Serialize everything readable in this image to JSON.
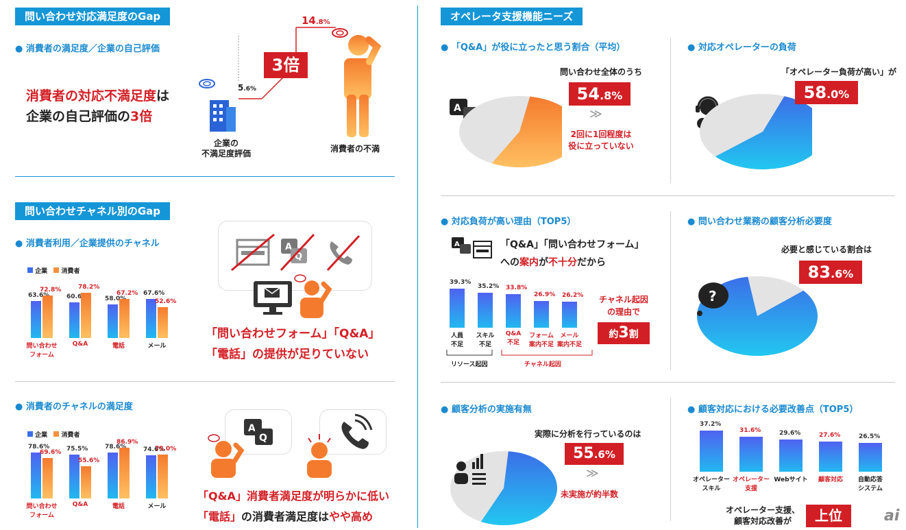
{
  "left": {
    "section1": {
      "header": "問い合わせ対応満足度のGap",
      "sub": "消費者の満足度／企業の自己評価",
      "lead1_a": "消費者の対応不満足度",
      "lead1_b": "は",
      "lead2_a": "企業の自己評価の",
      "lead2_b": "3倍",
      "value_high": "14",
      "value_high_unit": ".8%",
      "value_low": "5",
      "value_low_unit": ".6%",
      "multiple": "3倍",
      "company_label1": "企業の",
      "company_label2": "不満足度評価",
      "consumer_label": "消費者の不満"
    },
    "section2": {
      "header": "問い合わせチャネル別のGap",
      "sub": "消費者利用／企業提供のチャネル",
      "legend_company": "企業",
      "legend_consumer": "消費者",
      "message_line1": "「問い合わせフォーム」「Q&A」",
      "message_line2_a": "「電話」の提供が",
      "message_line2_b": "足りていない"
    },
    "section3": {
      "sub": "消費者のチャネルの満足度",
      "legend_company": "企業",
      "legend_consumer": "消費者",
      "message_line1_a": "「Q&A」消費者満足度が明らかに",
      "message_line1_b": "低い",
      "message_line2_a": "「電話」",
      "message_line2_b": "の消費者満足度は",
      "message_line2_c": "やや高め"
    }
  },
  "right": {
    "header": "オペレータ支援機能ニーズ",
    "qa": {
      "sub": "「Q&A」が役に立ったと思う割合（平均）",
      "intro": "問い合わせ全体のうち",
      "value": "54",
      "value_unit": ".8%",
      "note1": "2回に1回程度は",
      "note2": "役に立っていない"
    },
    "load": {
      "sub": "対応オペレーターの負荷",
      "intro": "「オペレーター負荷が高い」が",
      "value": "58",
      "value_unit": ".0%"
    },
    "reasons": {
      "sub": "対応負荷が高い理由（TOP5）",
      "msg1": "「Q&A」「問い合わせフォーム」",
      "msg2_a": "への",
      "msg2_b": "案内",
      "msg2_c": "が",
      "msg2_d": "不十分",
      "msg2_e": "だから",
      "group_resource": "リソース起因",
      "group_channel": "チャネル起因",
      "callout1": "チャネル起因",
      "callout2": "の理由で",
      "callout3_a": "約",
      "callout3_b": "3",
      "callout3_c": "割"
    },
    "analysis_need": {
      "sub": "問い合わせ業務の顧客分析必要度",
      "intro": "必要と感じている割合は",
      "value": "83",
      "value_unit": ".6%"
    },
    "analysis_done": {
      "sub": "顧客分析の実施有無",
      "intro": "実際に分析を行っているのは",
      "value": "55",
      "value_unit": ".6%",
      "note": "未実施が約半数"
    },
    "improve": {
      "sub": "顧客対応における必要改善点（TOP5）",
      "msg1": "オペレーター支援、",
      "msg2": "顧客対応改善が",
      "badge": "上位"
    }
  },
  "brand": "ai",
  "colors": {
    "blue": "#1596d6",
    "red": "#d21f25",
    "orange": "#f47b2e"
  },
  "chart_data": [
    {
      "type": "bar",
      "id": "channel-usage",
      "categories": [
        "問い合わせフォーム",
        "Q&A",
        "電話",
        "メール"
      ],
      "category_lines": [
        [
          "問い合わせ",
          "フォーム"
        ],
        [
          "Q&A"
        ],
        [
          "電話"
        ],
        [
          "メール"
        ]
      ],
      "series": [
        {
          "name": "企業",
          "values": [
            63.6,
            60.6,
            58.0,
            67.6
          ],
          "labels": [
            "63.6%",
            "60.6%",
            "58.0%",
            "67.6%"
          ]
        },
        {
          "name": "消費者",
          "values": [
            72.8,
            78.2,
            67.2,
            52.6
          ],
          "labels": [
            "72.8%",
            "78.2%",
            "67.2%",
            "52.6%"
          ]
        }
      ]
    },
    {
      "type": "bar",
      "id": "channel-satisfaction",
      "categories": [
        "問い合わせフォーム",
        "Q&A",
        "電話",
        "メール"
      ],
      "category_lines": [
        [
          "問い合わせ",
          "フォーム"
        ],
        [
          "Q&A"
        ],
        [
          "電話"
        ],
        [
          "メール"
        ]
      ],
      "series": [
        {
          "name": "企業",
          "values": [
            78.6,
            75.5,
            78.6,
            74.6
          ],
          "labels": [
            "78.6%",
            "75.5%",
            "78.6%",
            "74.6%"
          ]
        },
        {
          "name": "消費者",
          "values": [
            69.6,
            55.6,
            86.9,
            75.0
          ],
          "labels": [
            "69.6%",
            "55.6%",
            "86.9%",
            "75.0%"
          ]
        }
      ]
    },
    {
      "type": "bar",
      "id": "load-reasons",
      "categories": [
        "人員不足",
        "スキル不足",
        "Q&A不足",
        "フォーム案内不足",
        "メール案内不足"
      ],
      "category_lines": [
        [
          "人員",
          "不足"
        ],
        [
          "スキル",
          "不足"
        ],
        [
          "Q&A",
          "不足"
        ],
        [
          "フォーム",
          "案内不足"
        ],
        [
          "メール",
          "案内不足"
        ]
      ],
      "values": [
        39.3,
        35.2,
        33.8,
        26.9,
        26.2
      ],
      "labels": [
        "39.3%",
        "35.2%",
        "33.8%",
        "26.9%",
        "26.2%"
      ]
    },
    {
      "type": "bar",
      "id": "improvements",
      "categories": [
        "オペレータースキル",
        "オペレーター支援",
        "Webサイト",
        "顧客対応",
        "自動応答システム"
      ],
      "category_lines": [
        [
          "オペレーター",
          "スキル"
        ],
        [
          "オペレーター",
          "支援"
        ],
        [
          "Webサイト"
        ],
        [
          "顧客対応"
        ],
        [
          "自動応答",
          "システム"
        ]
      ],
      "values": [
        37.2,
        31.6,
        29.6,
        27.6,
        26.5
      ],
      "labels": [
        "37.2%",
        "31.6%",
        "29.6%",
        "27.6%",
        "26.5%"
      ]
    },
    {
      "type": "pie",
      "id": "qa-useful",
      "values": [
        54.8,
        45.2
      ]
    },
    {
      "type": "pie",
      "id": "operator-load",
      "values": [
        58.0,
        42.0
      ]
    },
    {
      "type": "pie",
      "id": "analysis-need",
      "values": [
        83.6,
        16.4
      ]
    },
    {
      "type": "pie",
      "id": "analysis-done",
      "values": [
        55.6,
        44.4
      ]
    }
  ]
}
